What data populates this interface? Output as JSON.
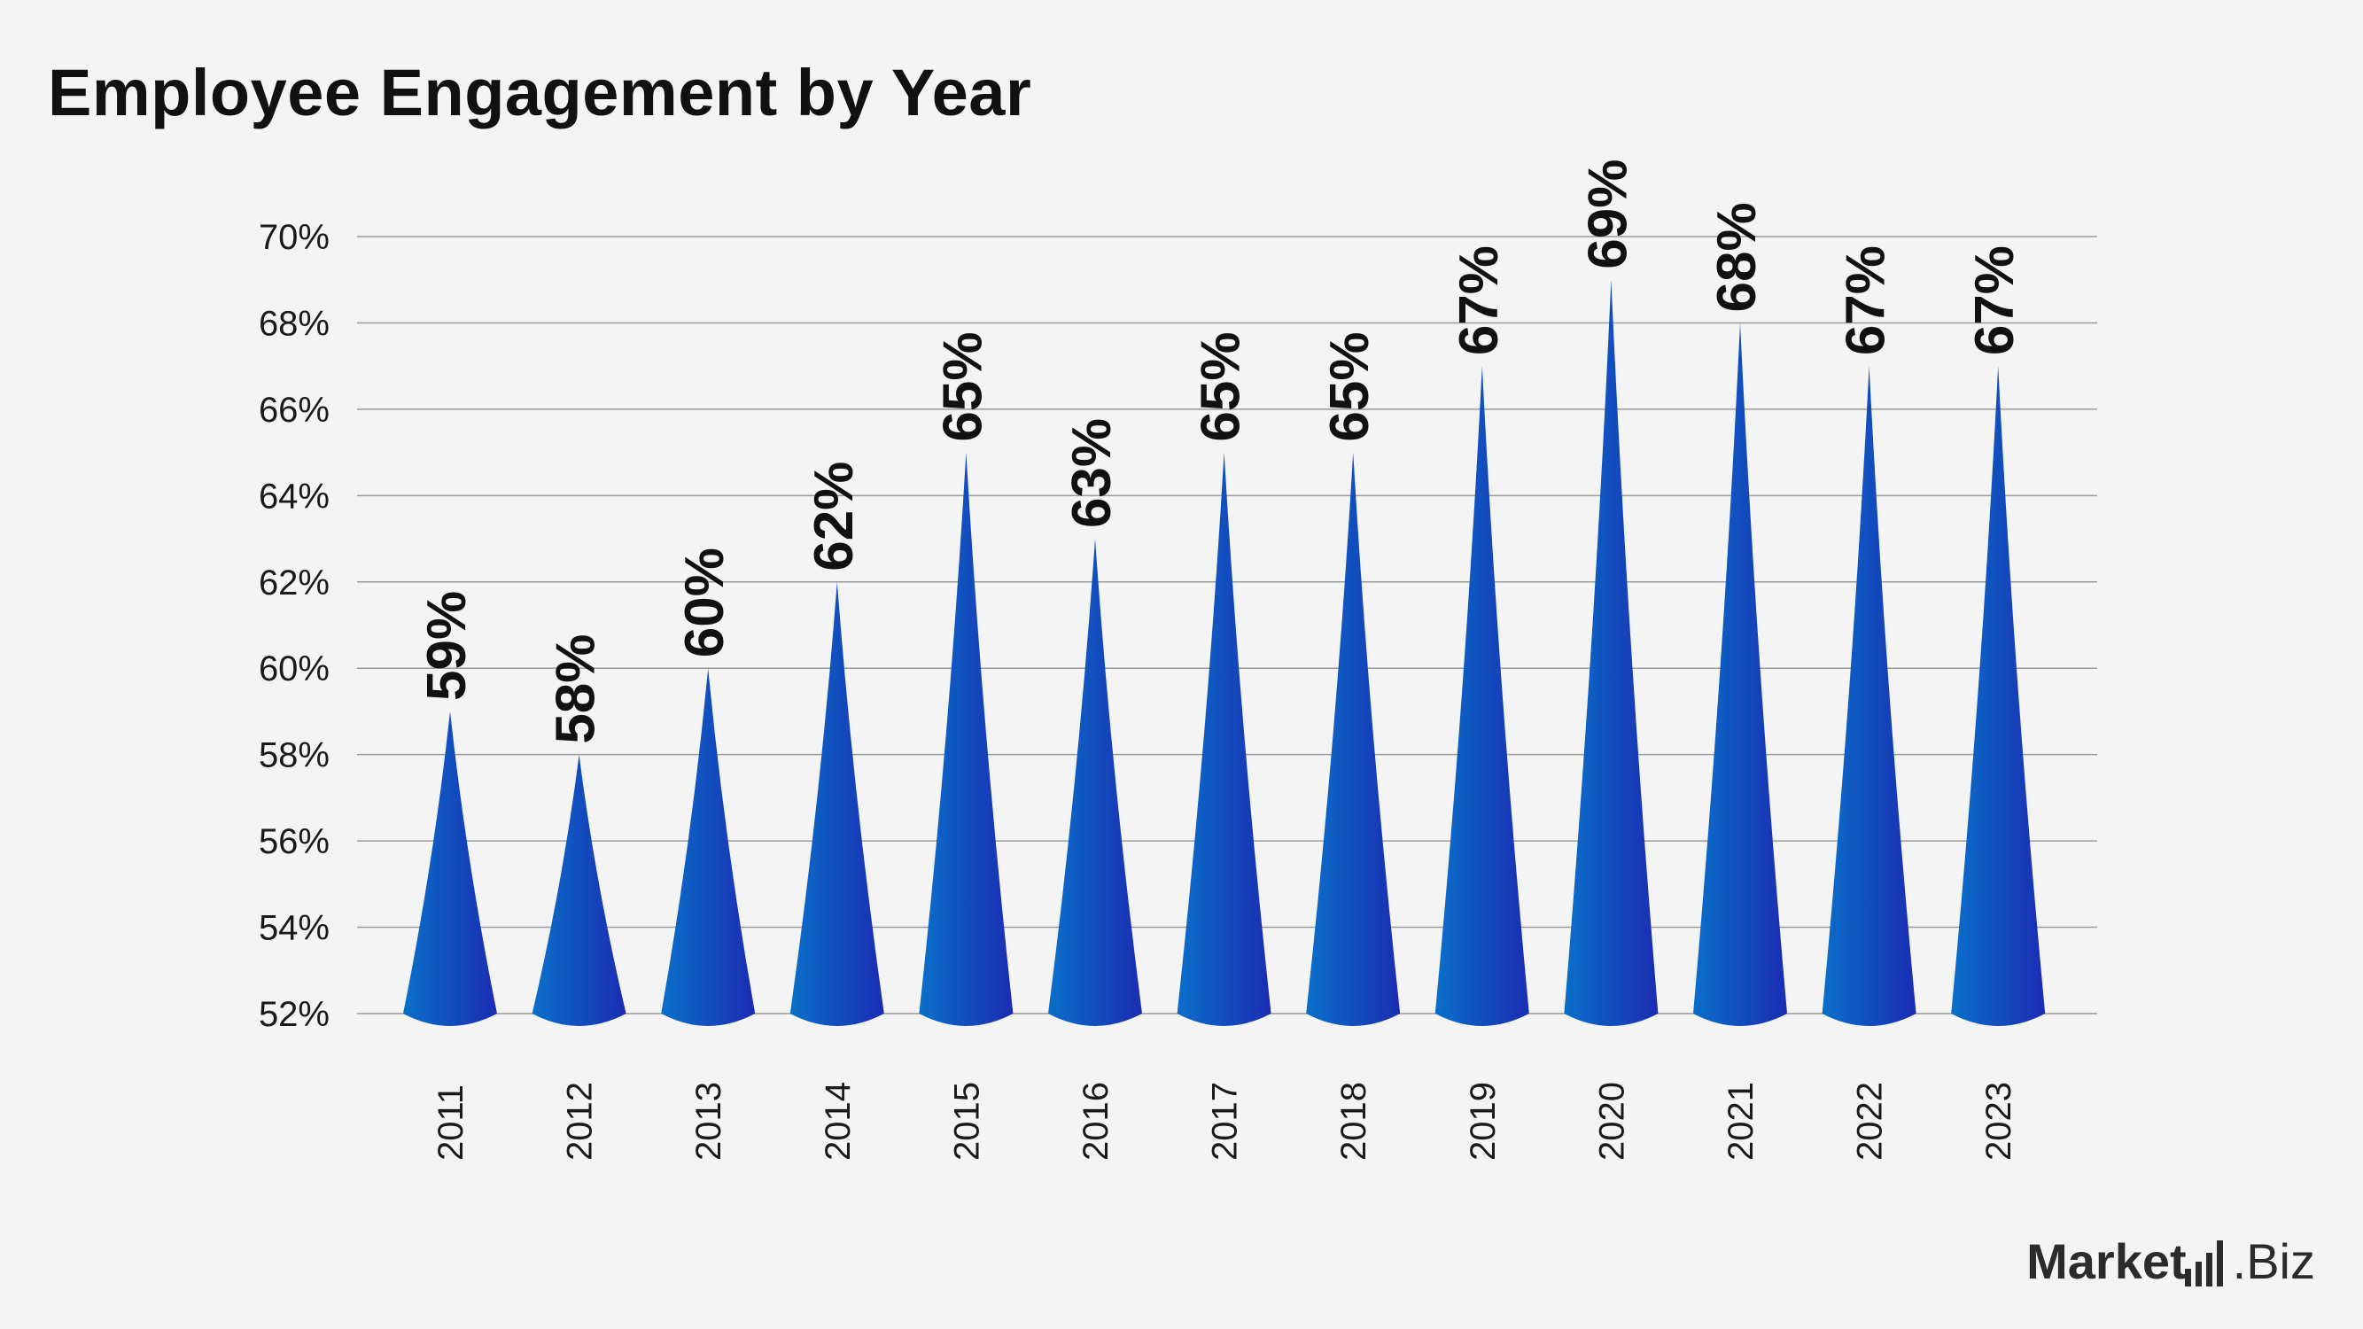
{
  "chart_data": {
    "type": "bar",
    "title": "Employee Engagement by Year",
    "categories": [
      "2011",
      "2012",
      "2013",
      "2014",
      "2015",
      "2016",
      "2017",
      "2018",
      "2019",
      "2020",
      "2021",
      "2022",
      "2023"
    ],
    "values": [
      59,
      58,
      60,
      62,
      65,
      63,
      65,
      65,
      67,
      69,
      68,
      67,
      67
    ],
    "data_labels": [
      "59%",
      "58%",
      "60%",
      "62%",
      "65%",
      "63%",
      "65%",
      "65%",
      "67%",
      "69%",
      "68%",
      "67%",
      "67%"
    ],
    "yticks": [
      "52%",
      "54%",
      "56%",
      "58%",
      "60%",
      "62%",
      "64%",
      "66%",
      "68%",
      "70%"
    ],
    "ylim": [
      52,
      70
    ],
    "grid": true,
    "bar_style": "cone",
    "colors": {
      "bar_start": "#0a6fc9",
      "bar_end": "#1a2db3",
      "grid": "#9a9a9a",
      "text": "#111111"
    }
  },
  "branding": {
    "logo_text_bold": "Market",
    "logo_text_light": ".Biz",
    "logo_icon": "bar-signal-icon"
  }
}
